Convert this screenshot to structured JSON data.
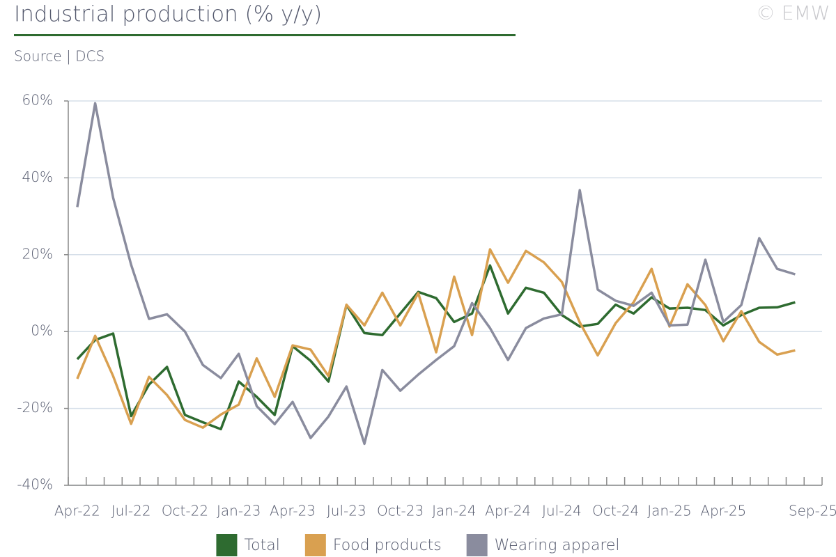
{
  "chart_data": {
    "type": "line",
    "title": "Industrial production (% y/y)",
    "subtitle": "Source | DCS",
    "watermark": "© EMW",
    "categories": [
      "Apr-22",
      null,
      null,
      "Jul-22",
      null,
      null,
      "Oct-22",
      null,
      null,
      "Jan-23",
      null,
      null,
      "Apr-23",
      null,
      null,
      "Jul-23",
      null,
      null,
      "Oct-23",
      null,
      null,
      "Jan-24",
      null,
      null,
      "Apr-24",
      null,
      null,
      "Jul-24",
      null,
      null,
      "Oct-24",
      null,
      null,
      "Jan-25",
      null,
      null,
      "Apr-25",
      null,
      null,
      null,
      null,
      "Sep-25"
    ],
    "series": [
      {
        "name": "Total",
        "color": "#2e6b30",
        "values": [
          -7.2,
          -2.2,
          -0.5,
          -22,
          -13.8,
          -9.2,
          -21.7,
          -23.6,
          -25.4,
          -13,
          -17,
          -21.7,
          -3.8,
          -7.6,
          -13,
          6.9,
          -0.4,
          -0.9,
          4.7,
          10.3,
          8.7,
          2.5,
          4.7,
          17.2,
          4.7,
          11.4,
          10.1,
          4.3,
          1.3,
          2,
          7,
          4.7,
          8.9,
          6,
          6.2,
          5.6,
          1.6,
          4.3,
          6.2,
          6.3,
          7.6,
          null
        ]
      },
      {
        "name": "Food products",
        "color": "#d9a050",
        "values": [
          -12.3,
          -1.1,
          -11.6,
          -24,
          -11.8,
          -16.5,
          -23,
          -25,
          -21.6,
          -19,
          -7,
          -17,
          -3.6,
          -4.7,
          -11.6,
          7,
          1.6,
          10.1,
          1.6,
          10,
          -5.4,
          14.3,
          -0.9,
          21.4,
          12.7,
          21,
          18,
          12.9,
          2.4,
          -6.2,
          2.2,
          7.6,
          16.3,
          1.3,
          12.3,
          6.9,
          -2.5,
          5.3,
          -2.7,
          -6,
          -4.9,
          null
        ]
      },
      {
        "name": "Wearing apparel",
        "color": "#8a8c9e",
        "values": [
          32.4,
          59.4,
          34.8,
          17.4,
          3.3,
          4.5,
          0,
          -8.7,
          -12.1,
          -5.8,
          -19.4,
          -24.1,
          -18.3,
          -27.7,
          -22.1,
          -14.3,
          -29.2,
          -10,
          -15.4,
          -11.2,
          -7.4,
          -3.8,
          7.4,
          0.9,
          -7.4,
          0.9,
          3.4,
          4.5,
          36.8,
          10.9,
          8,
          6.7,
          10.1,
          1.6,
          1.8,
          18.7,
          2.5,
          6.9,
          24.3,
          16.3,
          14.9,
          null
        ]
      }
    ],
    "ylim": [
      -40,
      60
    ],
    "yticks": [
      {
        "value": -40,
        "label": "-40%"
      },
      {
        "value": -20,
        "label": "-20%"
      },
      {
        "value": 0,
        "label": "0%"
      },
      {
        "value": 20,
        "label": "20%"
      },
      {
        "value": 40,
        "label": "40%"
      },
      {
        "value": 60,
        "label": "60%"
      }
    ],
    "grid": true,
    "legend": "bottom"
  }
}
